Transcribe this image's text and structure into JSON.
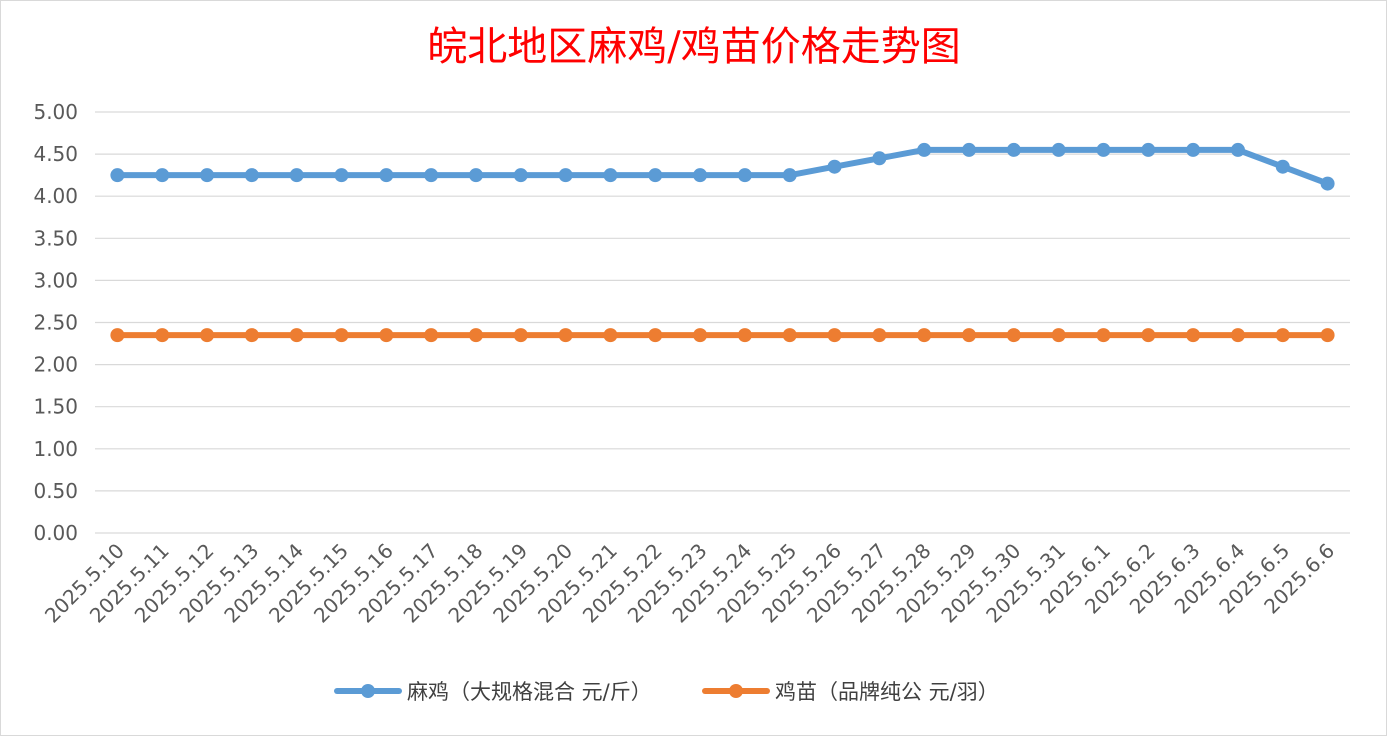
{
  "chart_data": {
    "type": "line",
    "title": "皖北地区麻鸡/鸡苗价格走势图",
    "xlabel": "",
    "ylabel": "",
    "ylim": [
      0,
      5
    ],
    "y_ticks": [
      "0.00",
      "0.50",
      "1.00",
      "1.50",
      "2.00",
      "2.50",
      "3.00",
      "3.50",
      "4.00",
      "4.50",
      "5.00"
    ],
    "grid": true,
    "legend_position": "bottom",
    "categories": [
      "2025.5.10",
      "2025.5.11",
      "2025.5.12",
      "2025.5.13",
      "2025.5.14",
      "2025.5.15",
      "2025.5.16",
      "2025.5.17",
      "2025.5.18",
      "2025.5.19",
      "2025.5.20",
      "2025.5.21",
      "2025.5.22",
      "2025.5.23",
      "2025.5.24",
      "2025.5.25",
      "2025.5.26",
      "2025.5.27",
      "2025.5.28",
      "2025.5.29",
      "2025.5.30",
      "2025.5.31",
      "2025.6.1",
      "2025.6.2",
      "2025.6.3",
      "2025.6.4",
      "2025.6.5",
      "2025.6.6"
    ],
    "series": [
      {
        "name": "麻鸡（大规格混合 元/斤）",
        "color": "#5b9bd5",
        "values": [
          4.25,
          4.25,
          4.25,
          4.25,
          4.25,
          4.25,
          4.25,
          4.25,
          4.25,
          4.25,
          4.25,
          4.25,
          4.25,
          4.25,
          4.25,
          4.25,
          4.35,
          4.45,
          4.55,
          4.55,
          4.55,
          4.55,
          4.55,
          4.55,
          4.55,
          4.55,
          4.35,
          4.15
        ]
      },
      {
        "name": "鸡苗（品牌纯公 元/羽）",
        "color": "#ed7d31",
        "values": [
          2.35,
          2.35,
          2.35,
          2.35,
          2.35,
          2.35,
          2.35,
          2.35,
          2.35,
          2.35,
          2.35,
          2.35,
          2.35,
          2.35,
          2.35,
          2.35,
          2.35,
          2.35,
          2.35,
          2.35,
          2.35,
          2.35,
          2.35,
          2.35,
          2.35,
          2.35,
          2.35,
          2.35
        ]
      }
    ]
  }
}
